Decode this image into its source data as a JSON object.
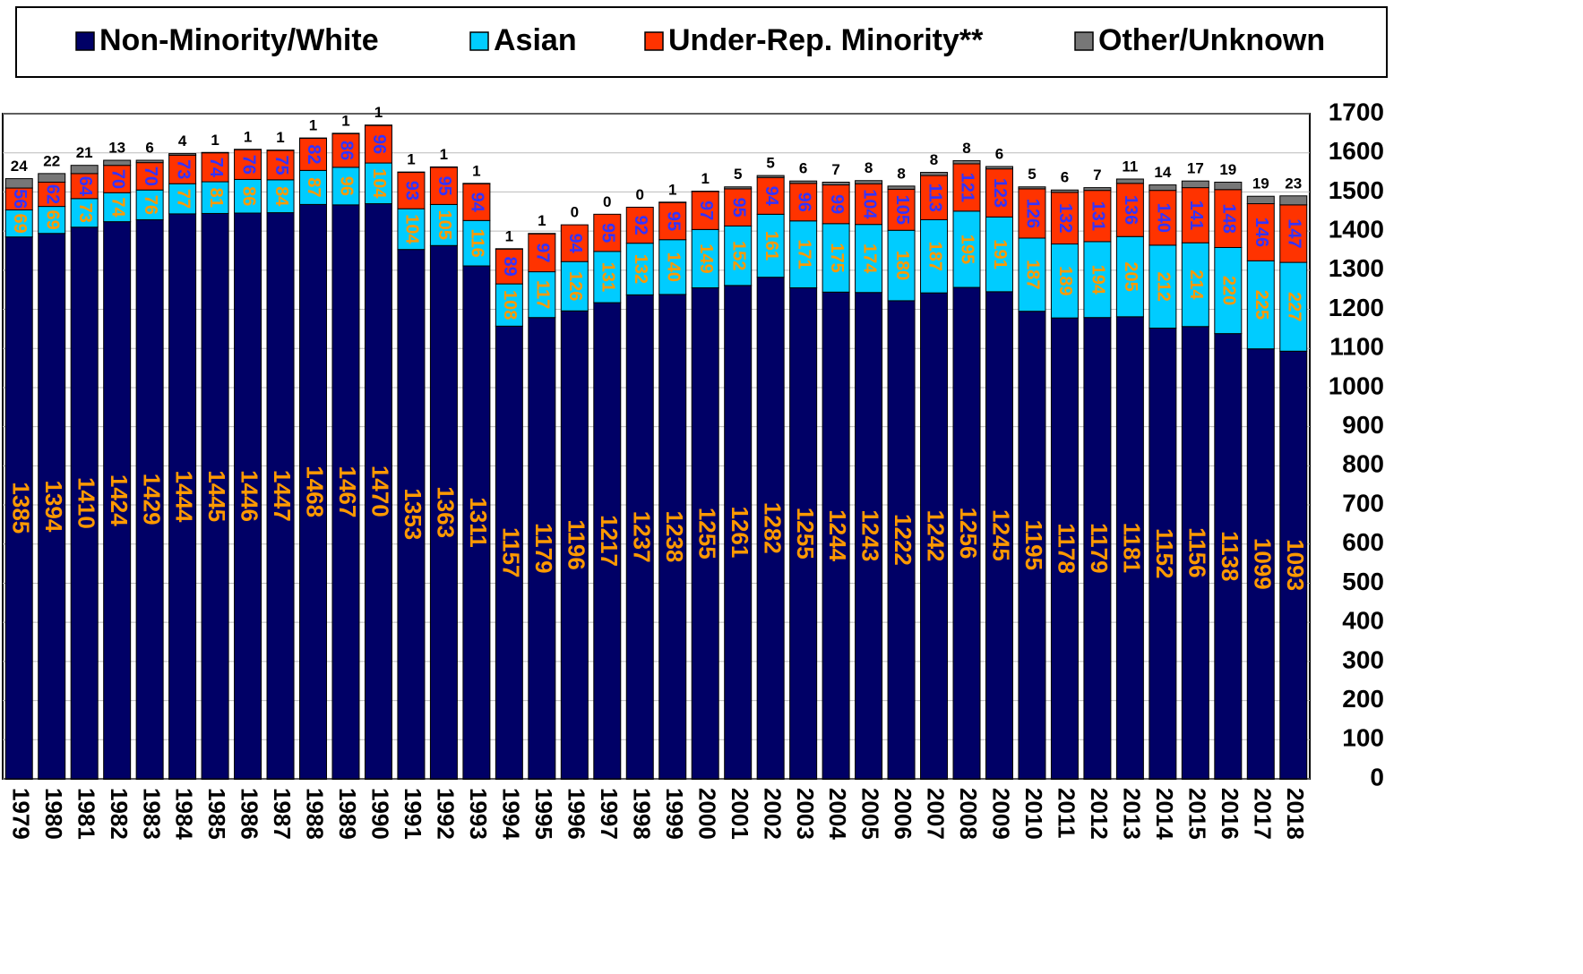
{
  "chart_data": {
    "type": "stacked_bar",
    "categories": [
      "1979",
      "1980",
      "1981",
      "1982",
      "1983",
      "1984",
      "1985",
      "1986",
      "1987",
      "1988",
      "1989",
      "1990",
      "1991",
      "1992",
      "1993",
      "1994",
      "1995",
      "1996",
      "1997",
      "1998",
      "1999",
      "2000",
      "2001",
      "2002",
      "2003",
      "2004",
      "2005",
      "2006",
      "2007",
      "2008",
      "2009",
      "2010",
      "2011",
      "2012",
      "2013",
      "2014",
      "2015",
      "2016",
      "2017",
      "2018"
    ],
    "series": [
      {
        "name": "Non-Minority/White",
        "color": "#000066",
        "values": [
          1385,
          1394,
          1410,
          1424,
          1429,
          1444,
          1445,
          1446,
          1447,
          1468,
          1467,
          1470,
          1353,
          1363,
          1311,
          1157,
          1179,
          1196,
          1217,
          1237,
          1238,
          1255,
          1261,
          1282,
          1255,
          1244,
          1243,
          1222,
          1242,
          1256,
          1245,
          1195,
          1178,
          1179,
          1181,
          1152,
          1156,
          1138,
          1099,
          1093
        ]
      },
      {
        "name": "Asian",
        "color": "#00ccff",
        "values": [
          69,
          69,
          73,
          74,
          76,
          77,
          81,
          86,
          84,
          87,
          96,
          104,
          104,
          105,
          116,
          108,
          117,
          126,
          131,
          132,
          140,
          149,
          152,
          161,
          171,
          175,
          174,
          180,
          187,
          195,
          191,
          187,
          189,
          194,
          205,
          212,
          214,
          220,
          225,
          227
        ]
      },
      {
        "name": "Under-Rep. Minority**",
        "color": "#ff3300",
        "values": [
          56,
          62,
          64,
          70,
          70,
          73,
          74,
          76,
          75,
          82,
          86,
          96,
          93,
          95,
          94,
          89,
          97,
          94,
          95,
          92,
          95,
          97,
          95,
          94,
          96,
          99,
          104,
          105,
          113,
          121,
          123,
          126,
          132,
          131,
          136,
          140,
          141,
          148,
          146,
          147
        ]
      },
      {
        "name": "Other/Unknown",
        "color": "#777777",
        "values": [
          24,
          22,
          21,
          13,
          6,
          4,
          1,
          1,
          1,
          1,
          1,
          1,
          1,
          1,
          1,
          1,
          1,
          0,
          0,
          0,
          1,
          1,
          5,
          5,
          6,
          7,
          8,
          8,
          8,
          8,
          6,
          5,
          6,
          7,
          11,
          14,
          17,
          19,
          19,
          23
        ]
      }
    ],
    "ylim": [
      0,
      1700
    ],
    "yticks": [
      0,
      100,
      200,
      300,
      400,
      500,
      600,
      700,
      800,
      900,
      1000,
      1100,
      1200,
      1300,
      1400,
      1500,
      1600,
      1700
    ],
    "grid": true,
    "legend": "top"
  }
}
